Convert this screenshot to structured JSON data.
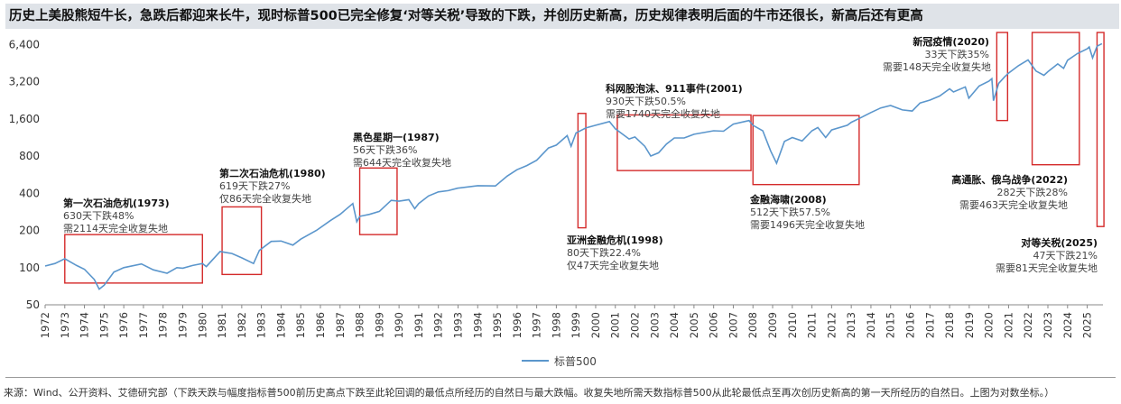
{
  "title": "历史上美股熊短牛长，急跌后都迎来长牛，现时标普500已完全修复‘对等关税’导致的下跌，并创历史新高，历史规律表明后面的牛市还很长，新高后还有更高",
  "source": "来源：Wind、公开资料、艾德研究部（下跌天跌与幅度指标普500前历史高点下跌至此轮回调的最低点所经历的自然日与最大跌幅。收复失地所需天数指标普500从此轮最低点至再次创历史新高的第一天所经历的自然日。上图为对数坐标。）",
  "chart_data": {
    "type": "line",
    "y_scale": "log",
    "ylim": [
      50,
      8000
    ],
    "y_ticks": [
      50,
      100,
      200,
      400,
      800,
      1600,
      3200,
      6400
    ],
    "y_tick_labels": [
      "50",
      "100",
      "200",
      "400",
      "800",
      "1,600",
      "3,200",
      "6,400"
    ],
    "x_range": [
      1972,
      2025.8
    ],
    "x_tick_labels": [
      "1972",
      "1973",
      "1974",
      "1975",
      "1976",
      "1977",
      "1978",
      "1979",
      "1980",
      "1981",
      "1982",
      "1983",
      "1984",
      "1985",
      "1986",
      "1987",
      "1988",
      "1989",
      "1990",
      "1991",
      "1992",
      "1993",
      "1994",
      "1995",
      "1996",
      "1997",
      "1998",
      "1999",
      "2000",
      "2001",
      "2002",
      "2003",
      "2004",
      "2005",
      "2006",
      "2007",
      "2008",
      "2009",
      "2010",
      "2011",
      "2012",
      "2013",
      "2014",
      "2015",
      "2016",
      "2017",
      "2018",
      "2019",
      "2020",
      "2021",
      "2022",
      "2023",
      "2024",
      "2025"
    ],
    "series": [
      {
        "name": "标普500",
        "color": "#5b96cc",
        "x": [
          1972.0,
          1972.5,
          1973.0,
          1973.6,
          1974.0,
          1974.5,
          1974.75,
          1975.0,
          1975.5,
          1976.0,
          1976.9,
          1977.5,
          1978.2,
          1978.7,
          1979.0,
          1979.5,
          1980.0,
          1980.2,
          1980.9,
          1981.5,
          1982.0,
          1982.6,
          1982.9,
          1983.5,
          1984.0,
          1984.6,
          1985.0,
          1985.8,
          1986.5,
          1987.0,
          1987.65,
          1987.85,
          1988.0,
          1988.5,
          1989.0,
          1989.6,
          1990.0,
          1990.5,
          1990.8,
          1991.0,
          1991.5,
          1992.0,
          1992.5,
          1993.0,
          1994.0,
          1994.9,
          1995.5,
          1996.0,
          1996.5,
          1997.0,
          1997.6,
          1998.0,
          1998.55,
          1998.75,
          1999.0,
          1999.5,
          2000.0,
          2000.7,
          2001.0,
          2001.7,
          2002.0,
          2002.5,
          2002.8,
          2003.2,
          2003.6,
          2004.0,
          2004.5,
          2005.0,
          2006.0,
          2006.5,
          2007.0,
          2007.8,
          2008.0,
          2008.5,
          2008.9,
          2009.2,
          2009.6,
          2010.0,
          2010.5,
          2011.0,
          2011.3,
          2011.7,
          2012.0,
          2012.8,
          2013.0,
          2013.5,
          2014.0,
          2014.5,
          2015.0,
          2015.6,
          2016.1,
          2016.5,
          2017.0,
          2017.5,
          2018.0,
          2018.2,
          2018.8,
          2018.98,
          2019.5,
          2020.0,
          2020.15,
          2020.23,
          2020.5,
          2020.8,
          2021.0,
          2021.5,
          2021.99,
          2022.4,
          2022.8,
          2023.0,
          2023.5,
          2023.8,
          2024.0,
          2024.5,
          2025.0,
          2025.1,
          2025.27,
          2025.5,
          2025.75
        ],
        "y": [
          103,
          108,
          118,
          104,
          97,
          80,
          67,
          72,
          92,
          100,
          107,
          96,
          90,
          100,
          99,
          104,
          108,
          102,
          135,
          130,
          120,
          108,
          138,
          163,
          164,
          152,
          170,
          200,
          240,
          270,
          330,
          235,
          260,
          270,
          285,
          350,
          345,
          355,
          300,
          330,
          380,
          410,
          420,
          440,
          460,
          458,
          550,
          620,
          670,
          740,
          930,
          980,
          1170,
          960,
          1230,
          1350,
          1420,
          1520,
          1330,
          1100,
          1140,
          960,
          800,
          850,
          1000,
          1120,
          1120,
          1200,
          1280,
          1270,
          1450,
          1550,
          1420,
          1280,
          880,
          700,
          1050,
          1130,
          1060,
          1280,
          1360,
          1130,
          1300,
          1420,
          1500,
          1640,
          1800,
          1960,
          2050,
          1890,
          1850,
          2150,
          2270,
          2450,
          2800,
          2640,
          2900,
          2350,
          2950,
          3230,
          3380,
          2240,
          3100,
          3500,
          3750,
          4300,
          4800,
          3900,
          3600,
          3850,
          4450,
          4100,
          4770,
          5400,
          5900,
          6100,
          4980,
          6200,
          6500
        ]
      }
    ],
    "annotations": [
      {
        "title": "第一次石油危机(1973)",
        "line1": "630天下跌48%",
        "line2": "需2114天完全收复失地"
      },
      {
        "title": "第二次石油危机(1980)",
        "line1": "619天下跌27%",
        "line2": "仅86天完全收复失地"
      },
      {
        "title": "黑色星期一(1987)",
        "line1": "56天下跌36%",
        "line2": "需644天完全收复失地"
      },
      {
        "title": "亚洲金融危机(1998)",
        "line1": "80天下跌22.4%",
        "line2": "仅47天完全收复失地"
      },
      {
        "title": "科网股泡沫、911事件(2001)",
        "line1": "930天下跌50.5%",
        "line2": "需要1740天完全收复失地"
      },
      {
        "title": "金融海啸(2008)",
        "line1": "512天下跌57.5%",
        "line2": "需要1496天完全收复失地"
      },
      {
        "title": "新冠疫情(2020)",
        "line1": "33天下跌35%",
        "line2": "需要148天完全收复失地"
      },
      {
        "title": "高通胀、俄乌战争(2022)",
        "line1": "282天下跌28%",
        "line2": "需要463天完全收复失地"
      },
      {
        "title": "对等关税(2025)",
        "line1": "47天下跌21%",
        "line2": "需要81天完全收复失地"
      }
    ],
    "crisis_boxes": [
      {
        "x": [
          1973.0,
          1980.0
        ],
        "y": [
          75,
          185
        ]
      },
      {
        "x": [
          1981.0,
          1983.0
        ],
        "y": [
          88,
          310
        ]
      },
      {
        "x": [
          1988.0,
          1989.9
        ],
        "y": [
          185,
          640
        ]
      },
      {
        "x": [
          1999.1,
          1999.5
        ],
        "y": [
          210,
          1770
        ]
      },
      {
        "x": [
          2001.1,
          2007.9
        ],
        "y": [
          610,
          1720
        ]
      },
      {
        "x": [
          2008.0,
          2013.4
        ],
        "y": [
          470,
          1700
        ]
      },
      {
        "x": [
          2020.4,
          2020.95
        ],
        "y": [
          1550,
          8000
        ]
      },
      {
        "x": [
          2022.2,
          2024.6
        ],
        "y": [
          680,
          8000
        ]
      },
      {
        "x": [
          2025.5,
          2025.85
        ],
        "y": [
          215,
          8000
        ]
      }
    ],
    "legend": "bottom-center",
    "grid": false
  }
}
